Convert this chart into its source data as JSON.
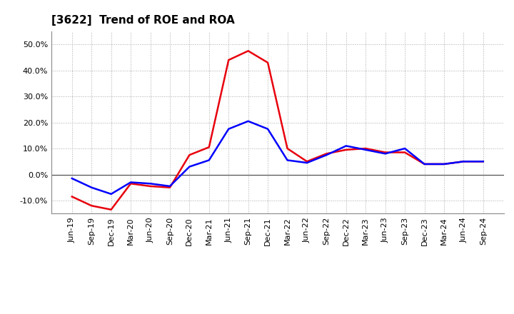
{
  "title": "[3622]  Trend of ROE and ROA",
  "x_labels": [
    "Jun-19",
    "Sep-19",
    "Dec-19",
    "Mar-20",
    "Jun-20",
    "Sep-20",
    "Dec-20",
    "Mar-21",
    "Jun-21",
    "Sep-21",
    "Dec-21",
    "Mar-22",
    "Jun-22",
    "Sep-22",
    "Dec-22",
    "Mar-23",
    "Jun-23",
    "Sep-23",
    "Dec-23",
    "Mar-24",
    "Jun-24",
    "Sep-24"
  ],
  "roe": [
    -8.5,
    -12.0,
    -13.5,
    -3.5,
    -4.5,
    -5.0,
    7.5,
    10.5,
    44.0,
    47.5,
    43.0,
    10.0,
    5.0,
    8.0,
    9.5,
    10.0,
    8.5,
    8.5,
    4.0,
    4.0,
    5.0,
    5.0
  ],
  "roa": [
    -1.5,
    -5.0,
    -7.5,
    -3.0,
    -3.5,
    -4.5,
    3.0,
    5.5,
    17.5,
    20.5,
    17.5,
    5.5,
    4.5,
    7.5,
    11.0,
    9.5,
    8.0,
    10.0,
    4.0,
    4.0,
    5.0,
    5.0
  ],
  "roe_color": "#e8000d",
  "roa_color": "#0000ff",
  "background_color": "#ffffff",
  "grid_color": "#aaaaaa",
  "ylim": [
    -15,
    55
  ],
  "yticks": [
    -10.0,
    0.0,
    10.0,
    20.0,
    30.0,
    40.0,
    50.0
  ],
  "line_width": 1.8,
  "title_fontsize": 11,
  "tick_fontsize": 8,
  "legend_fontsize": 9
}
